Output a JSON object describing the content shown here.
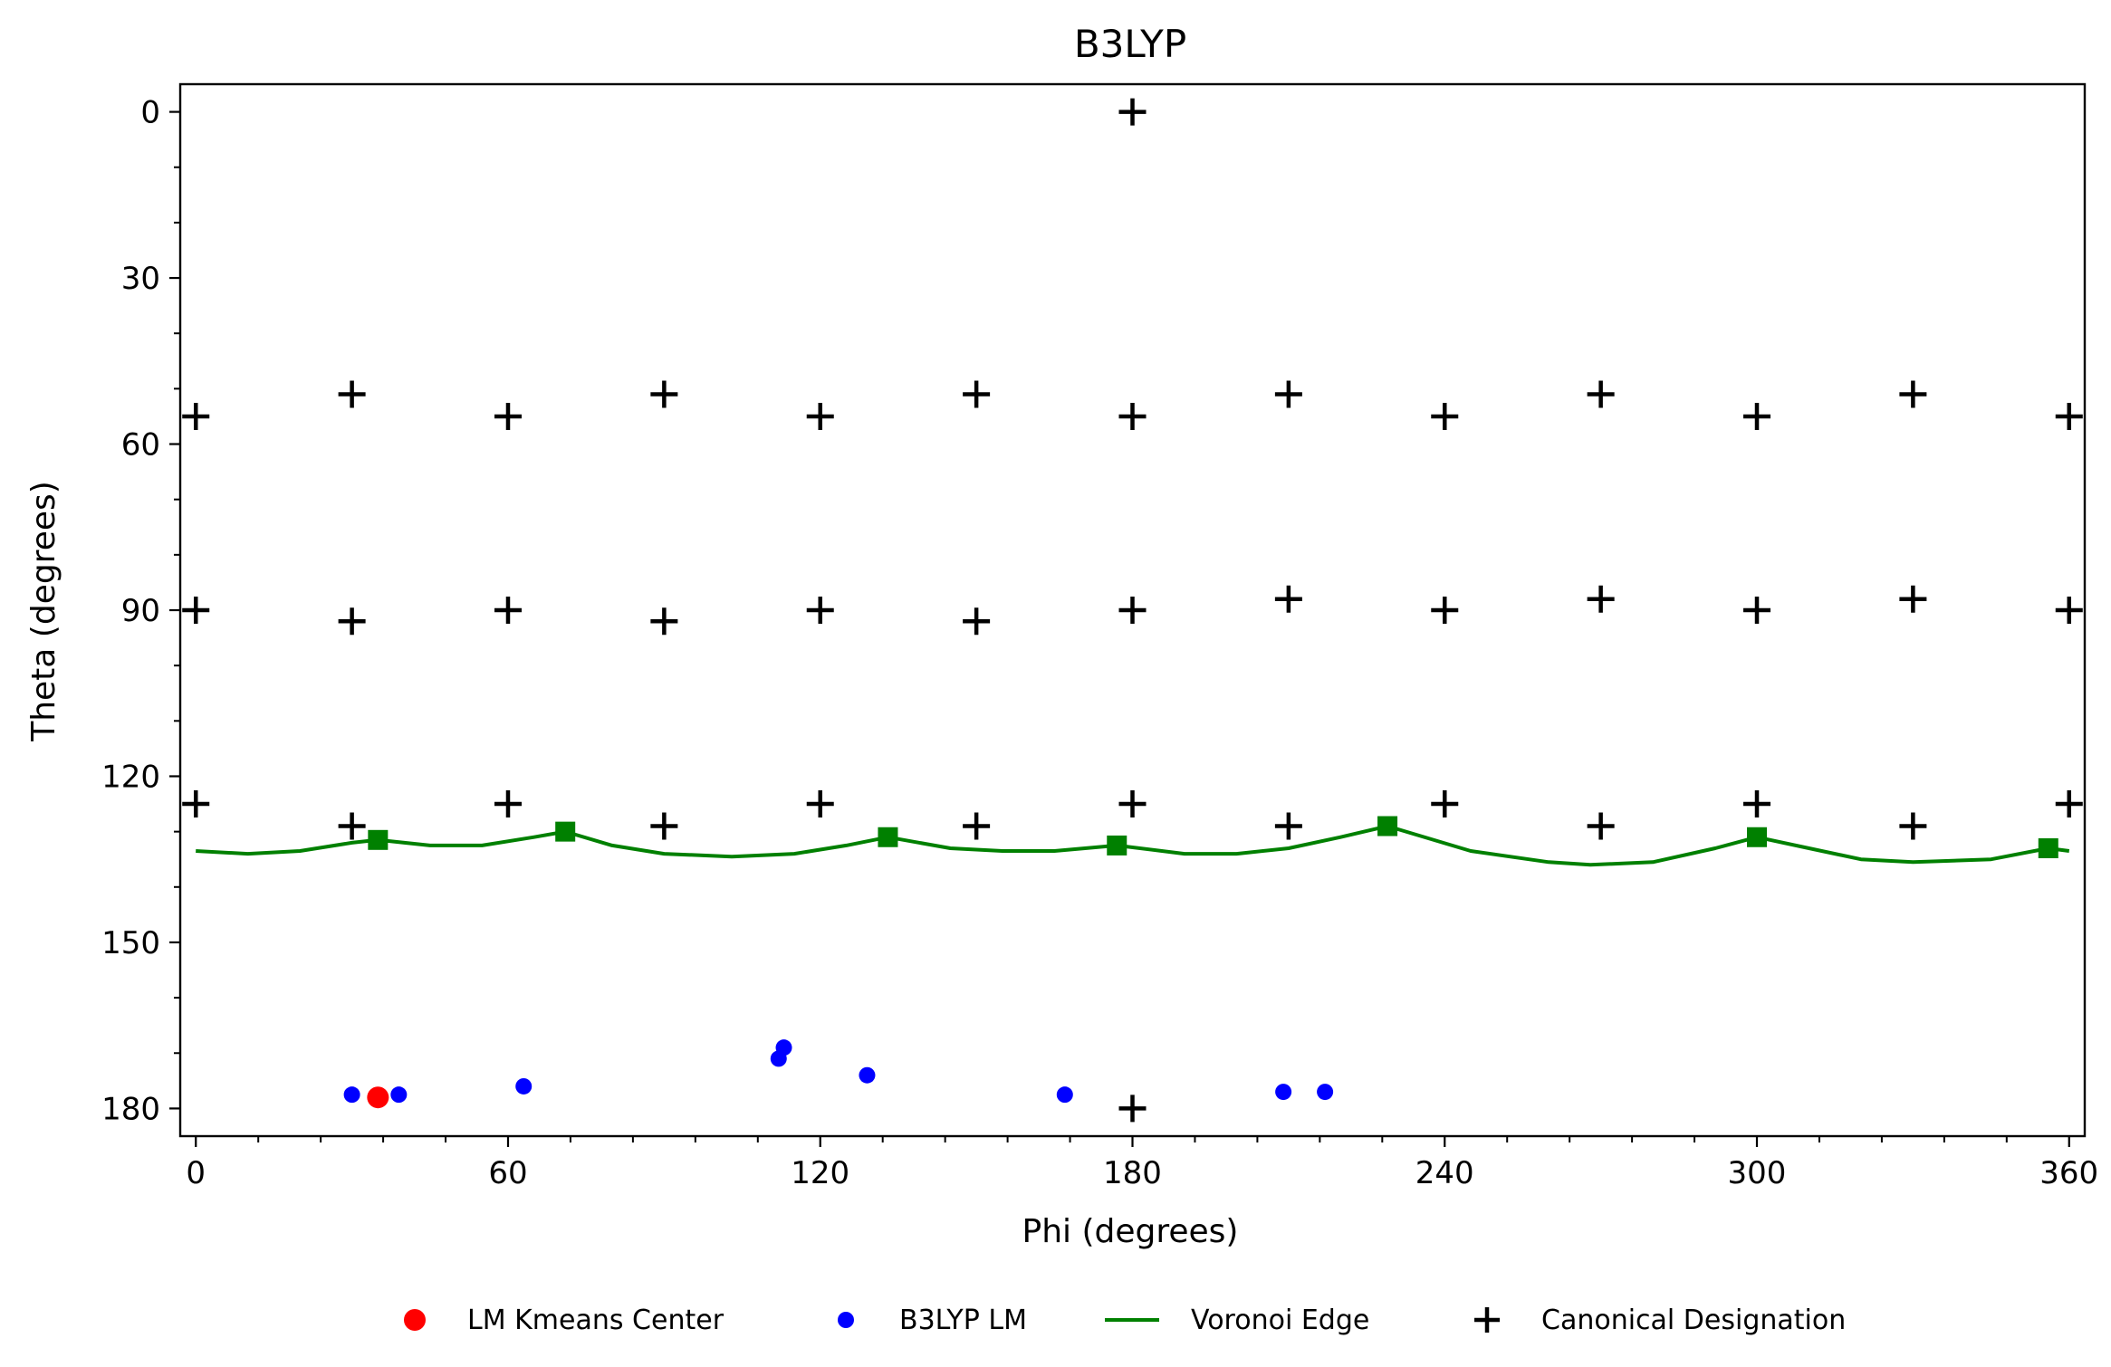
{
  "chart_data": {
    "type": "scatter",
    "title": "B3LYP",
    "xlabel": "Phi (degrees)",
    "ylabel": "Theta (degrees)",
    "xlim": [
      -3,
      363
    ],
    "ylim": [
      185,
      -5
    ],
    "y_inverted": true,
    "x_ticks": [
      0,
      60,
      120,
      180,
      240,
      300,
      360
    ],
    "y_ticks": [
      0,
      30,
      60,
      90,
      120,
      150,
      180
    ],
    "x_minor_step": 12,
    "y_minor_step": 10,
    "grid": false,
    "legend_position": "bottom",
    "colors": {
      "kmeans": "#ff0000",
      "lm": "#0000ff",
      "voronoi": "#008000",
      "canonical": "#000000"
    },
    "series": [
      {
        "name": "LM Kmeans Center",
        "kind": "scatter",
        "marker": "circle-large",
        "points": [
          [
            35,
            178
          ]
        ]
      },
      {
        "name": "B3LYP LM",
        "kind": "scatter",
        "marker": "circle",
        "points": [
          [
            30,
            177.5
          ],
          [
            39,
            177.5
          ],
          [
            63,
            176
          ],
          [
            112,
            171
          ],
          [
            113,
            169
          ],
          [
            129,
            174
          ],
          [
            167,
            177.5
          ],
          [
            209,
            177
          ],
          [
            217,
            177
          ]
        ]
      },
      {
        "name": "Voronoi Edge",
        "kind": "curve",
        "marker": "square",
        "vertices": [
          [
            35,
            131.5
          ],
          [
            71,
            130
          ],
          [
            133,
            131
          ],
          [
            177,
            132.5
          ],
          [
            229,
            129
          ],
          [
            300,
            131
          ],
          [
            356,
            133
          ]
        ],
        "curve_points": [
          [
            0,
            133.5
          ],
          [
            10,
            134
          ],
          [
            20,
            133.5
          ],
          [
            30,
            132
          ],
          [
            35,
            131.5
          ],
          [
            45,
            132.5
          ],
          [
            55,
            132.5
          ],
          [
            65,
            131
          ],
          [
            71,
            130
          ],
          [
            80,
            132.5
          ],
          [
            90,
            134
          ],
          [
            103,
            134.5
          ],
          [
            115,
            134
          ],
          [
            125,
            132.5
          ],
          [
            133,
            131
          ],
          [
            145,
            133
          ],
          [
            155,
            133.5
          ],
          [
            165,
            133.5
          ],
          [
            177,
            132.5
          ],
          [
            190,
            134
          ],
          [
            200,
            134
          ],
          [
            210,
            133
          ],
          [
            220,
            131
          ],
          [
            229,
            129
          ],
          [
            245,
            133.5
          ],
          [
            260,
            135.5
          ],
          [
            268,
            136
          ],
          [
            280,
            135.5
          ],
          [
            292,
            133
          ],
          [
            300,
            131
          ],
          [
            310,
            133
          ],
          [
            320,
            135
          ],
          [
            330,
            135.5
          ],
          [
            345,
            135
          ],
          [
            356,
            133
          ],
          [
            360,
            133.5
          ]
        ]
      },
      {
        "name": "Canonical Designation",
        "kind": "scatter",
        "marker": "plus",
        "points": [
          [
            180,
            0
          ],
          [
            0,
            55
          ],
          [
            30,
            51
          ],
          [
            60,
            55
          ],
          [
            90,
            51
          ],
          [
            120,
            55
          ],
          [
            150,
            51
          ],
          [
            180,
            55
          ],
          [
            210,
            51
          ],
          [
            240,
            55
          ],
          [
            270,
            51
          ],
          [
            300,
            55
          ],
          [
            330,
            51
          ],
          [
            360,
            55
          ],
          [
            0,
            90
          ],
          [
            30,
            92
          ],
          [
            60,
            90
          ],
          [
            90,
            92
          ],
          [
            120,
            90
          ],
          [
            150,
            92
          ],
          [
            180,
            90
          ],
          [
            210,
            88
          ],
          [
            240,
            90
          ],
          [
            270,
            88
          ],
          [
            300,
            90
          ],
          [
            330,
            88
          ],
          [
            360,
            90
          ],
          [
            0,
            125
          ],
          [
            30,
            129
          ],
          [
            60,
            125
          ],
          [
            90,
            129
          ],
          [
            120,
            125
          ],
          [
            150,
            129
          ],
          [
            180,
            125
          ],
          [
            210,
            129
          ],
          [
            240,
            125
          ],
          [
            270,
            129
          ],
          [
            300,
            125
          ],
          [
            330,
            129
          ],
          [
            360,
            125
          ],
          [
            180,
            180
          ]
        ]
      }
    ]
  }
}
